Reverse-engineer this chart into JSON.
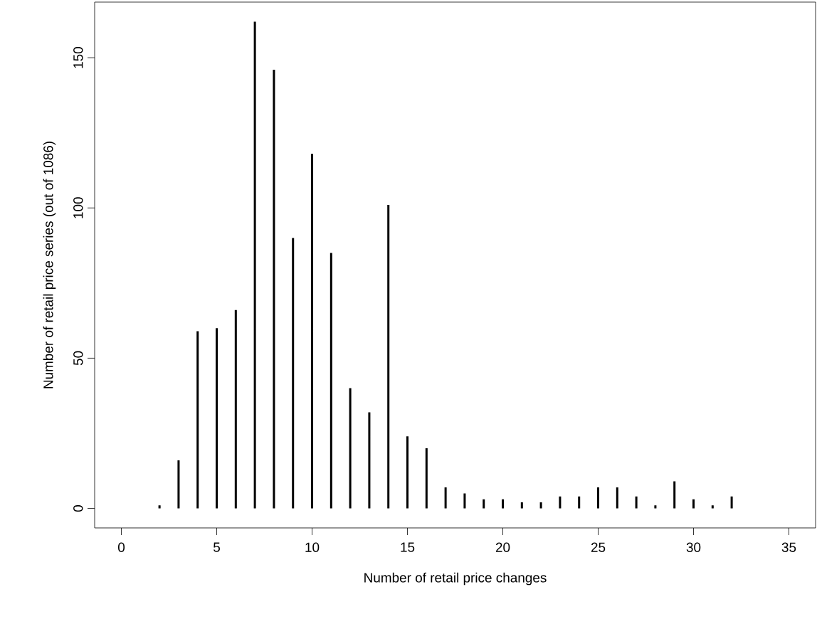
{
  "chart_data": {
    "type": "bar",
    "xlabel": "Number of retail price changes",
    "ylabel": "Number of retail price series (out of 1086)",
    "x": [
      2,
      3,
      4,
      5,
      6,
      7,
      8,
      9,
      10,
      11,
      12,
      13,
      14,
      15,
      16,
      17,
      18,
      19,
      20,
      21,
      22,
      23,
      24,
      25,
      26,
      27,
      28,
      29,
      30,
      31,
      32
    ],
    "values": [
      1,
      16,
      59,
      60,
      66,
      162,
      146,
      90,
      118,
      85,
      40,
      32,
      101,
      24,
      20,
      7,
      5,
      3,
      3,
      2,
      2,
      4,
      4,
      7,
      7,
      4,
      1,
      9,
      3,
      1,
      4
    ],
    "color": "#000000",
    "xlim": [
      -1.4,
      36.4
    ],
    "ylim": [
      -6.5,
      168.5
    ],
    "xticks": [
      0,
      5,
      10,
      15,
      20,
      25,
      30,
      35
    ],
    "yticks": [
      0,
      50,
      100,
      150
    ]
  }
}
